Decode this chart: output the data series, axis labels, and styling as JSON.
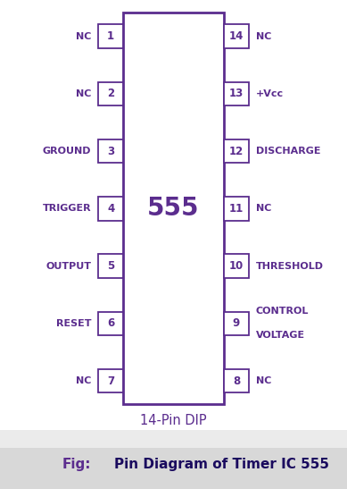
{
  "title_bold": "Fig:",
  "title_normal": " Pin Diagram of Timer IC 555",
  "subtitle": "14-Pin DIP",
  "ic_label": "555",
  "color": "#5B2D8E",
  "text_color_normal": "#1a0a4a",
  "bg_color": "#FFFFFF",
  "caption_bg": "#E0E0E0",
  "left_pins": [
    {
      "num": "1",
      "label": "NC"
    },
    {
      "num": "2",
      "label": "NC"
    },
    {
      "num": "3",
      "label": "GROUND"
    },
    {
      "num": "4",
      "label": "TRIGGER"
    },
    {
      "num": "5",
      "label": "OUTPUT"
    },
    {
      "num": "6",
      "label": "RESET"
    },
    {
      "num": "7",
      "label": "NC"
    }
  ],
  "right_pins": [
    {
      "num": "14",
      "label": "NC"
    },
    {
      "num": "13",
      "label": "+Vcc"
    },
    {
      "num": "12",
      "label": "DISCHARGE"
    },
    {
      "num": "11",
      "label": "NC"
    },
    {
      "num": "10",
      "label": "THRESHOLD"
    },
    {
      "num": "9",
      "label": "CONTROL\nVOLTAGE"
    },
    {
      "num": "8",
      "label": "NC"
    }
  ]
}
